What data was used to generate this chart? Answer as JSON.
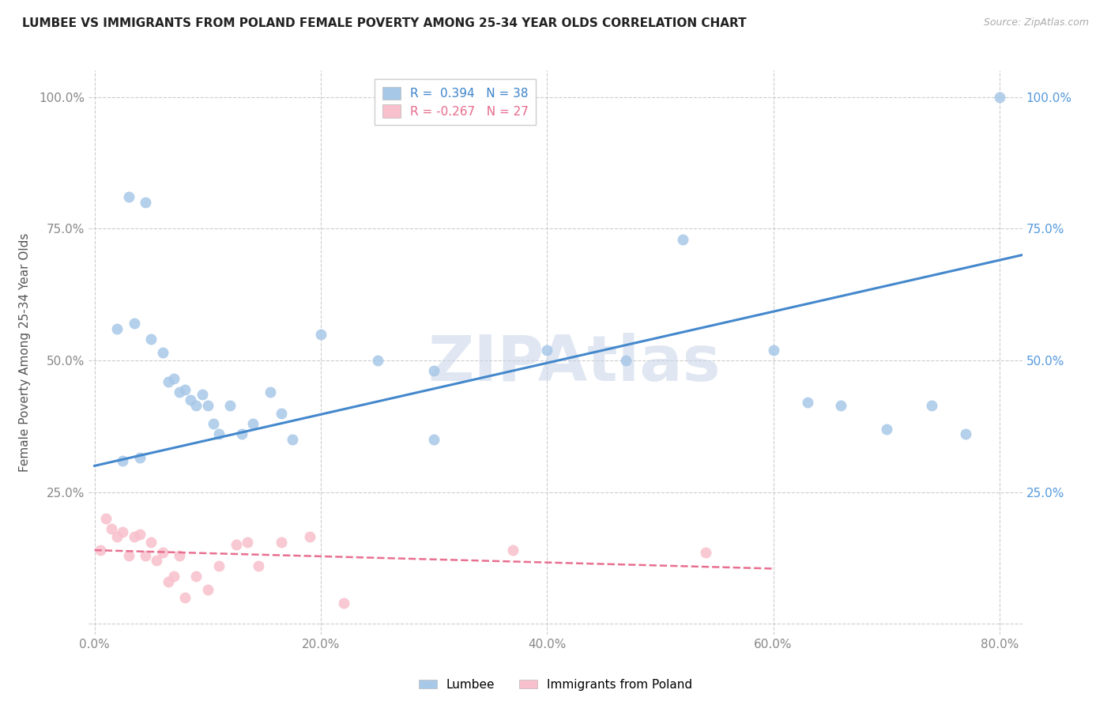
{
  "title": "LUMBEE VS IMMIGRANTS FROM POLAND FEMALE POVERTY AMONG 25-34 YEAR OLDS CORRELATION CHART",
  "source": "Source: ZipAtlas.com",
  "ylabel": "Female Poverty Among 25-34 Year Olds",
  "xlim": [
    -0.005,
    0.82
  ],
  "ylim": [
    -0.02,
    1.05
  ],
  "xticks": [
    0.0,
    0.2,
    0.4,
    0.6,
    0.8
  ],
  "yticks": [
    0.0,
    0.25,
    0.5,
    0.75,
    1.0
  ],
  "xtick_labels": [
    "0.0%",
    "20.0%",
    "40.0%",
    "60.0%",
    "80.0%"
  ],
  "ytick_labels_left": [
    "",
    "25.0%",
    "50.0%",
    "75.0%",
    "100.0%"
  ],
  "ytick_labels_right": [
    "",
    "25.0%",
    "50.0%",
    "75.0%",
    "100.0%"
  ],
  "lumbee_color": "#a8c8e8",
  "poland_color": "#f8c0cc",
  "lumbee_line_color": "#4488cc",
  "poland_line_color": "#e87090",
  "lumbee_R": 0.394,
  "lumbee_N": 38,
  "poland_R": -0.267,
  "poland_N": 27,
  "watermark": "ZIPAtlas",
  "watermark_color": "#c8d5e8",
  "lumbee_x": [
    0.03,
    0.045,
    0.02,
    0.035,
    0.05,
    0.06,
    0.065,
    0.07,
    0.075,
    0.08,
    0.085,
    0.09,
    0.095,
    0.1,
    0.105,
    0.11,
    0.12,
    0.13,
    0.14,
    0.155,
    0.165,
    0.175,
    0.2,
    0.25,
    0.3,
    0.4,
    0.47,
    0.52,
    0.6,
    0.63,
    0.66,
    0.7,
    0.74,
    0.77,
    0.3,
    0.8,
    0.025,
    0.04
  ],
  "lumbee_y": [
    0.81,
    0.8,
    0.56,
    0.57,
    0.54,
    0.515,
    0.46,
    0.465,
    0.44,
    0.445,
    0.425,
    0.415,
    0.435,
    0.415,
    0.38,
    0.36,
    0.415,
    0.36,
    0.38,
    0.44,
    0.4,
    0.35,
    0.55,
    0.5,
    0.48,
    0.52,
    0.5,
    0.73,
    0.52,
    0.42,
    0.415,
    0.37,
    0.415,
    0.36,
    0.35,
    1.0,
    0.31,
    0.315
  ],
  "poland_x": [
    0.005,
    0.01,
    0.015,
    0.02,
    0.025,
    0.03,
    0.035,
    0.04,
    0.045,
    0.05,
    0.055,
    0.06,
    0.065,
    0.07,
    0.075,
    0.08,
    0.09,
    0.1,
    0.11,
    0.125,
    0.135,
    0.145,
    0.165,
    0.19,
    0.22,
    0.37,
    0.54
  ],
  "poland_y": [
    0.14,
    0.2,
    0.18,
    0.165,
    0.175,
    0.13,
    0.165,
    0.17,
    0.13,
    0.155,
    0.12,
    0.135,
    0.08,
    0.09,
    0.13,
    0.05,
    0.09,
    0.065,
    0.11,
    0.15,
    0.155,
    0.11,
    0.155,
    0.165,
    0.04,
    0.14,
    0.135
  ],
  "lumbee_trend_x": [
    0.0,
    0.82
  ],
  "lumbee_trend_y_start": 0.3,
  "lumbee_trend_y_end": 0.7,
  "poland_trend_x_end": 0.6,
  "poland_trend_y_start": 0.14,
  "poland_trend_y_end": 0.105
}
